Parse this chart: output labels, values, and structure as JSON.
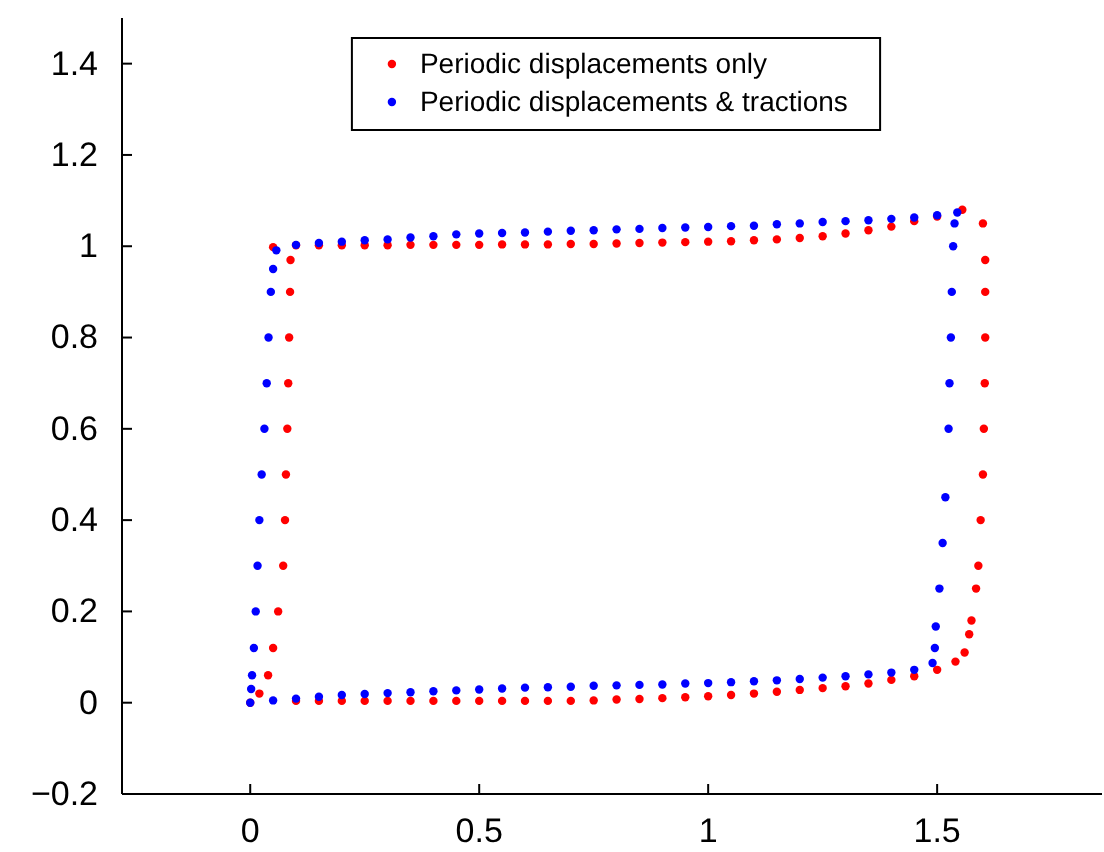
{
  "chart_data": {
    "type": "scatter",
    "marker": "circle",
    "legend": "top",
    "xlim": [
      -0.28,
      1.86
    ],
    "ylim": [
      -0.2,
      1.5
    ],
    "xticks": [
      0,
      0.5,
      1,
      1.5
    ],
    "yticks": [
      -0.2,
      0,
      0.2,
      0.4,
      0.6,
      0.8,
      1,
      1.2,
      1.4
    ],
    "series": [
      {
        "name": "Periodic displacements only",
        "color": "#ff0000",
        "x": [
          0,
          0.1,
          0.15,
          0.2,
          0.25,
          0.3,
          0.35,
          0.4,
          0.45,
          0.5,
          0.55,
          0.6,
          0.65,
          0.7,
          0.75,
          0.8,
          0.85,
          0.9,
          0.95,
          1.0,
          1.05,
          1.1,
          1.15,
          1.2,
          1.25,
          1.3,
          1.35,
          1.4,
          1.45,
          1.5,
          1.54,
          1.56,
          1.57,
          1.575,
          1.585,
          1.59,
          1.595,
          1.6,
          1.602,
          1.604,
          1.605,
          1.605,
          1.605,
          1.6,
          1.555,
          1.5,
          1.45,
          1.4,
          1.35,
          1.3,
          1.25,
          1.2,
          1.15,
          1.1,
          1.05,
          1.0,
          0.95,
          0.9,
          0.85,
          0.8,
          0.75,
          0.7,
          0.65,
          0.6,
          0.55,
          0.5,
          0.45,
          0.4,
          0.35,
          0.3,
          0.25,
          0.2,
          0.15,
          0.1,
          0.05,
          0.088,
          0.087,
          0.085,
          0.083,
          0.081,
          0.078,
          0.076,
          0.072,
          0.061,
          0.05,
          0.039,
          0.02
        ],
        "values": [
          0,
          0.004,
          0.004,
          0.004,
          0.004,
          0.004,
          0.004,
          0.004,
          0.004,
          0.004,
          0.004,
          0.004,
          0.004,
          0.004,
          0.005,
          0.007,
          0.008,
          0.01,
          0.012,
          0.014,
          0.017,
          0.02,
          0.024,
          0.028,
          0.032,
          0.036,
          0.042,
          0.05,
          0.058,
          0.072,
          0.09,
          0.11,
          0.15,
          0.18,
          0.25,
          0.3,
          0.4,
          0.5,
          0.6,
          0.7,
          0.8,
          0.9,
          0.97,
          1.05,
          1.08,
          1.065,
          1.055,
          1.043,
          1.035,
          1.028,
          1.022,
          1.018,
          1.015,
          1.013,
          1.011,
          1.01,
          1.009,
          1.008,
          1.007,
          1.006,
          1.005,
          1.005,
          1.004,
          1.004,
          1.004,
          1.003,
          1.003,
          1.003,
          1.003,
          1.002,
          1.002,
          1.002,
          1.002,
          1.002,
          0.998,
          0.97,
          0.9,
          0.8,
          0.7,
          0.6,
          0.5,
          0.4,
          0.3,
          0.2,
          0.12,
          0.06,
          0.02
        ]
      },
      {
        "name": "Periodic displacements & tractions",
        "color": "#0000ff",
        "x": [
          0,
          0.05,
          0.1,
          0.15,
          0.2,
          0.25,
          0.3,
          0.35,
          0.4,
          0.45,
          0.5,
          0.55,
          0.6,
          0.65,
          0.7,
          0.75,
          0.8,
          0.85,
          0.9,
          0.95,
          1.0,
          1.05,
          1.1,
          1.15,
          1.2,
          1.25,
          1.3,
          1.35,
          1.4,
          1.45,
          1.49,
          1.495,
          1.497,
          1.505,
          1.512,
          1.518,
          1.525,
          1.527,
          1.53,
          1.532,
          1.535,
          1.538,
          1.544,
          1.5,
          1.45,
          1.4,
          1.35,
          1.3,
          1.25,
          1.2,
          1.15,
          1.1,
          1.05,
          1.0,
          0.95,
          0.9,
          0.85,
          0.8,
          0.75,
          0.7,
          0.65,
          0.6,
          0.55,
          0.5,
          0.45,
          0.4,
          0.35,
          0.3,
          0.25,
          0.2,
          0.15,
          0.1,
          0.057,
          0.05,
          0.045,
          0.04,
          0.036,
          0.031,
          0.025,
          0.02,
          0.016,
          0.012,
          0.008,
          0.004,
          0.002
        ],
        "values": [
          0,
          0.005,
          0.009,
          0.013,
          0.017,
          0.019,
          0.021,
          0.023,
          0.025,
          0.027,
          0.029,
          0.031,
          0.033,
          0.034,
          0.035,
          0.037,
          0.038,
          0.039,
          0.04,
          0.042,
          0.043,
          0.045,
          0.047,
          0.049,
          0.052,
          0.055,
          0.058,
          0.062,
          0.066,
          0.072,
          0.087,
          0.12,
          0.167,
          0.25,
          0.35,
          0.45,
          0.6,
          0.7,
          0.8,
          0.9,
          1.0,
          1.05,
          1.074,
          1.068,
          1.063,
          1.06,
          1.057,
          1.055,
          1.053,
          1.05,
          1.048,
          1.045,
          1.044,
          1.042,
          1.041,
          1.04,
          1.038,
          1.037,
          1.035,
          1.034,
          1.032,
          1.03,
          1.029,
          1.028,
          1.026,
          1.022,
          1.019,
          1.015,
          1.013,
          1.01,
          1.007,
          1.003,
          0.991,
          0.95,
          0.9,
          0.8,
          0.7,
          0.6,
          0.5,
          0.4,
          0.3,
          0.2,
          0.12,
          0.06,
          0.03
        ]
      }
    ]
  }
}
